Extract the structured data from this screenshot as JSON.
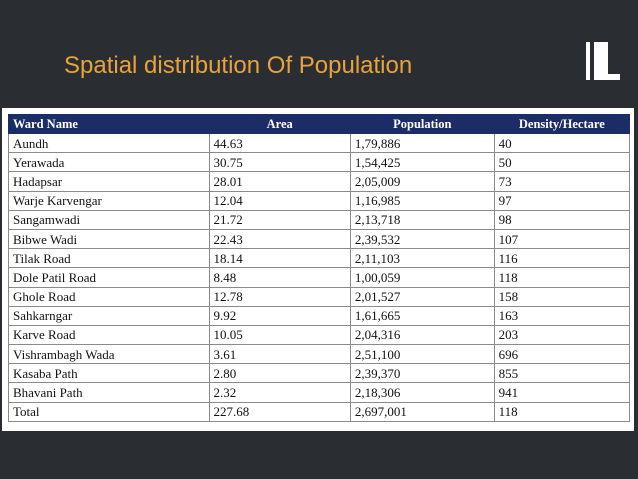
{
  "slide": {
    "title": "Spatial distribution Of Population"
  },
  "table": {
    "headers": {
      "ward": "Ward Name",
      "area": "Area",
      "population": "Population",
      "density": "Density/Hectare"
    },
    "rows": [
      [
        "Aundh",
        "44.63",
        "1,79,886",
        "40"
      ],
      [
        "Yerawada",
        "30.75",
        "1,54,425",
        "50"
      ],
      [
        "Hadapsar",
        "28.01",
        "2,05,009",
        "73"
      ],
      [
        "Warje Karvengar",
        "12.04",
        "1,16,985",
        "97"
      ],
      [
        "Sangamwadi",
        "21.72",
        "2,13,718",
        "98"
      ],
      [
        "Bibwe Wadi",
        "22.43",
        "2,39,532",
        "107"
      ],
      [
        "Tilak Road",
        "18.14",
        "2,11,103",
        "116"
      ],
      [
        "Dole Patil Road",
        "8.48",
        "1,00,059",
        "118"
      ],
      [
        "Ghole Road",
        "12.78",
        "2,01,527",
        "158"
      ],
      [
        "Sahkarngar",
        "9.92",
        "1,61,665",
        "163"
      ],
      [
        "Karve Road",
        "10.05",
        "2,04,316",
        "203"
      ],
      [
        "Vishrambagh Wada",
        "3.61",
        "2,51,100",
        "696"
      ],
      [
        "Kasaba Path",
        "2.80",
        "2,39,370",
        "855"
      ],
      [
        "Bhavani Path",
        "2.32",
        "2,18,306",
        "941"
      ],
      [
        "Total",
        "227.68",
        "2,697,001",
        "118"
      ]
    ]
  }
}
